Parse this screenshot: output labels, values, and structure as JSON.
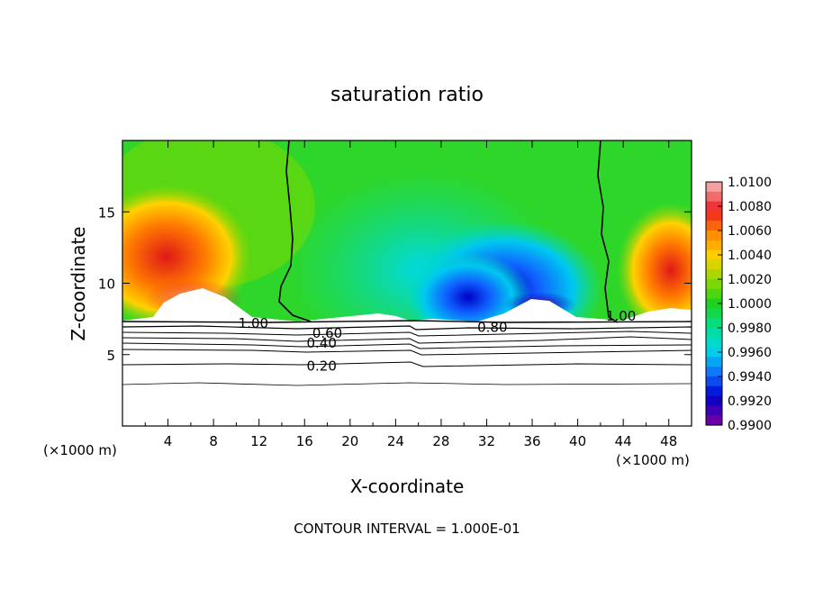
{
  "chart_data": {
    "type": "heatmap",
    "title": "saturation ratio",
    "xlabel": "X-coordinate",
    "ylabel": "Z-coordinate",
    "x_unit": "(×1000 m)",
    "xlim": [
      0,
      50
    ],
    "ylim": [
      0,
      20
    ],
    "x_ticks": [
      "4",
      "8",
      "12",
      "16",
      "20",
      "24",
      "28",
      "32",
      "36",
      "40",
      "44",
      "48"
    ],
    "x_tick_values": [
      4,
      8,
      12,
      16,
      20,
      24,
      28,
      32,
      36,
      40,
      44,
      48
    ],
    "y_ticks": [
      "5",
      "10",
      "15"
    ],
    "y_tick_values": [
      5,
      10,
      15
    ],
    "footer": "CONTOUR INTERVAL = 1.000E-01",
    "colorbar": {
      "labels": [
        "1.0100",
        "1.0080",
        "1.0060",
        "1.0040",
        "1.0020",
        "1.0000",
        "0.9980",
        "0.9960",
        "0.9940",
        "0.9920",
        "0.9900"
      ],
      "values": [
        1.01,
        1.008,
        1.006,
        1.004,
        1.002,
        1.0,
        0.998,
        0.996,
        0.994,
        0.992,
        0.99
      ],
      "colors_top_to_bottom": [
        "#f4a0a0",
        "#ee2020",
        "#ff8800",
        "#ffd200",
        "#8ed800",
        "#1ed21e",
        "#00e08c",
        "#00d8e8",
        "#1070ff",
        "#0000cc",
        "#6800a8"
      ]
    },
    "contour_labels": [
      {
        "text": "1.00",
        "x": 11.5,
        "z": 7.2
      },
      {
        "text": "1.00",
        "x": 43.8,
        "z": 7.7
      },
      {
        "text": "0.80",
        "x": 32.5,
        "z": 6.9
      },
      {
        "text": "0.60",
        "x": 18.0,
        "z": 6.5
      },
      {
        "text": "0.40",
        "x": 17.5,
        "z": 5.8
      },
      {
        "text": "0.20",
        "x": 17.5,
        "z": 4.2
      }
    ],
    "saturated_boundary_z": 7.2
  }
}
